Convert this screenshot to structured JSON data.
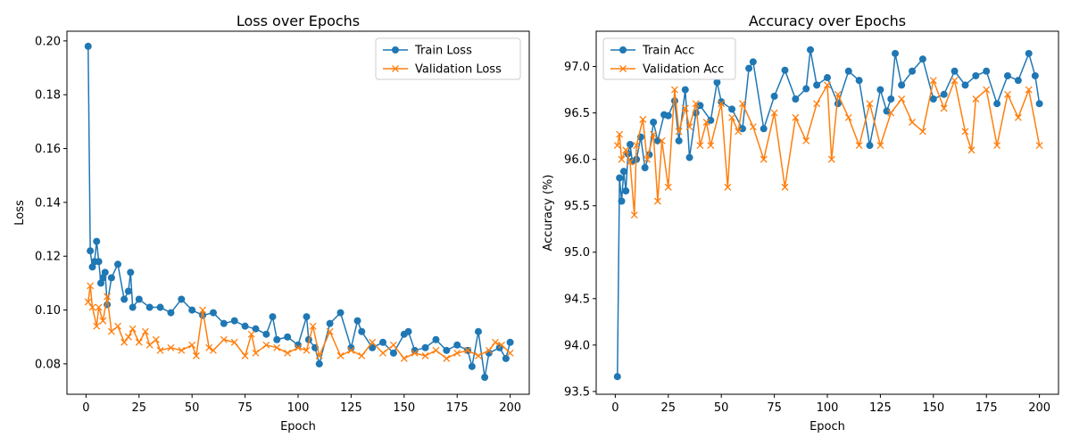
{
  "chart_data": [
    {
      "type": "line",
      "title": "Loss over Epochs",
      "xlabel": "Epoch",
      "ylabel": "Loss",
      "xlim": [
        -9,
        209
      ],
      "ylim": [
        0.0687,
        0.2036
      ],
      "xticks": [
        0,
        25,
        50,
        75,
        100,
        125,
        150,
        175,
        200
      ],
      "yticks": [
        0.08,
        0.1,
        0.12,
        0.14,
        0.16,
        0.18,
        0.2
      ],
      "ytick_decimals": 2,
      "legend_position": "upper right",
      "grid": false,
      "series": [
        {
          "name": "Train Loss",
          "color": "#1f77b4",
          "marker": "circle",
          "x": [
            1,
            2,
            3,
            4,
            5,
            6,
            7,
            8,
            9,
            10,
            12,
            15,
            18,
            20,
            21,
            22,
            25,
            30,
            35,
            40,
            45,
            50,
            55,
            60,
            65,
            70,
            75,
            80,
            85,
            88,
            90,
            95,
            100,
            104,
            105,
            108,
            110,
            115,
            120,
            125,
            128,
            130,
            135,
            140,
            145,
            150,
            152,
            155,
            160,
            165,
            170,
            175,
            180,
            182,
            185,
            188,
            190,
            195,
            198,
            200
          ],
          "values": [
            0.198,
            0.122,
            0.116,
            0.118,
            0.1255,
            0.118,
            0.11,
            0.112,
            0.114,
            0.102,
            0.112,
            0.117,
            0.104,
            0.107,
            0.114,
            0.101,
            0.104,
            0.101,
            0.101,
            0.099,
            0.104,
            0.1,
            0.098,
            0.099,
            0.095,
            0.096,
            0.094,
            0.093,
            0.091,
            0.0975,
            0.089,
            0.09,
            0.087,
            0.0975,
            0.089,
            0.086,
            0.08,
            0.095,
            0.099,
            0.086,
            0.096,
            0.092,
            0.086,
            0.088,
            0.084,
            0.091,
            0.092,
            0.085,
            0.086,
            0.089,
            0.085,
            0.087,
            0.085,
            0.079,
            0.092,
            0.075,
            0.084,
            0.086,
            0.082,
            0.088
          ]
        },
        {
          "name": "Validation Loss",
          "color": "#ff7f0e",
          "marker": "x",
          "x": [
            1,
            2,
            3,
            5,
            6,
            8,
            10,
            12,
            15,
            18,
            20,
            22,
            25,
            28,
            30,
            33,
            35,
            40,
            45,
            50,
            52,
            55,
            58,
            60,
            65,
            70,
            75,
            78,
            80,
            85,
            90,
            95,
            100,
            104,
            107,
            110,
            115,
            120,
            125,
            130,
            135,
            140,
            145,
            150,
            155,
            160,
            165,
            170,
            175,
            180,
            185,
            190,
            193,
            196,
            200
          ],
          "values": [
            0.103,
            0.109,
            0.101,
            0.094,
            0.101,
            0.096,
            0.105,
            0.092,
            0.094,
            0.088,
            0.09,
            0.093,
            0.088,
            0.092,
            0.087,
            0.089,
            0.085,
            0.086,
            0.085,
            0.087,
            0.083,
            0.1,
            0.086,
            0.085,
            0.089,
            0.088,
            0.083,
            0.091,
            0.084,
            0.087,
            0.086,
            0.084,
            0.086,
            0.085,
            0.094,
            0.083,
            0.092,
            0.083,
            0.085,
            0.083,
            0.088,
            0.084,
            0.087,
            0.082,
            0.084,
            0.083,
            0.085,
            0.082,
            0.084,
            0.085,
            0.083,
            0.085,
            0.088,
            0.087,
            0.084
          ]
        }
      ]
    },
    {
      "type": "line",
      "title": "Accuracy over Epochs",
      "xlabel": "Epoch",
      "ylabel": "Accuracy (%)",
      "xlim": [
        -9,
        209
      ],
      "ylim": [
        93.47,
        97.38
      ],
      "xticks": [
        0,
        25,
        50,
        75,
        100,
        125,
        150,
        175,
        200
      ],
      "yticks": [
        93.5,
        94.0,
        94.5,
        95.0,
        95.5,
        96.0,
        96.5,
        97.0
      ],
      "ytick_decimals": 1,
      "legend_position": "upper left",
      "grid": false,
      "series": [
        {
          "name": "Train Acc",
          "color": "#1f77b4",
          "marker": "circle",
          "x": [
            1,
            2,
            3,
            4,
            5,
            6,
            7,
            8,
            10,
            12,
            14,
            16,
            18,
            20,
            23,
            25,
            28,
            30,
            33,
            35,
            38,
            40,
            45,
            48,
            50,
            55,
            60,
            63,
            65,
            70,
            75,
            80,
            85,
            90,
            92,
            95,
            100,
            105,
            110,
            115,
            120,
            125,
            128,
            130,
            132,
            135,
            140,
            145,
            150,
            155,
            160,
            165,
            170,
            175,
            180,
            185,
            190,
            195,
            198,
            200
          ],
          "values": [
            93.66,
            95.8,
            95.55,
            95.87,
            95.66,
            96.06,
            96.16,
            95.98,
            96.0,
            96.24,
            95.91,
            96.05,
            96.4,
            96.2,
            96.48,
            96.47,
            96.63,
            96.2,
            96.75,
            96.02,
            96.5,
            96.58,
            96.42,
            96.83,
            96.62,
            96.54,
            96.33,
            96.98,
            97.05,
            96.33,
            96.68,
            96.96,
            96.65,
            96.76,
            97.18,
            96.8,
            96.88,
            96.6,
            96.95,
            96.85,
            96.15,
            96.75,
            96.52,
            96.65,
            97.14,
            96.8,
            96.95,
            97.08,
            96.65,
            96.7,
            96.95,
            96.8,
            96.9,
            96.95,
            96.6,
            96.9,
            96.85,
            97.14,
            96.9,
            96.6
          ]
        },
        {
          "name": "Validation Acc",
          "color": "#ff7f0e",
          "marker": "x",
          "x": [
            1,
            2,
            3,
            5,
            7,
            9,
            10,
            13,
            15,
            18,
            20,
            22,
            25,
            28,
            30,
            33,
            35,
            38,
            40,
            43,
            45,
            50,
            53,
            55,
            58,
            60,
            65,
            70,
            75,
            80,
            85,
            90,
            95,
            100,
            102,
            105,
            110,
            115,
            120,
            125,
            130,
            135,
            140,
            145,
            150,
            155,
            160,
            165,
            168,
            170,
            175,
            180,
            185,
            190,
            195,
            200
          ],
          "values": [
            96.15,
            96.27,
            96.0,
            96.1,
            95.97,
            95.4,
            96.15,
            96.43,
            96.0,
            96.27,
            95.55,
            96.2,
            95.7,
            96.75,
            96.3,
            96.55,
            96.35,
            96.6,
            96.15,
            96.4,
            96.15,
            96.6,
            95.7,
            96.45,
            96.3,
            96.6,
            96.35,
            96.0,
            96.5,
            95.7,
            96.45,
            96.2,
            96.6,
            96.8,
            96.0,
            96.7,
            96.45,
            96.15,
            96.6,
            96.15,
            96.5,
            96.65,
            96.4,
            96.3,
            96.85,
            96.55,
            96.85,
            96.3,
            96.1,
            96.65,
            96.75,
            96.15,
            96.7,
            96.45,
            96.75,
            96.15
          ]
        }
      ]
    }
  ]
}
